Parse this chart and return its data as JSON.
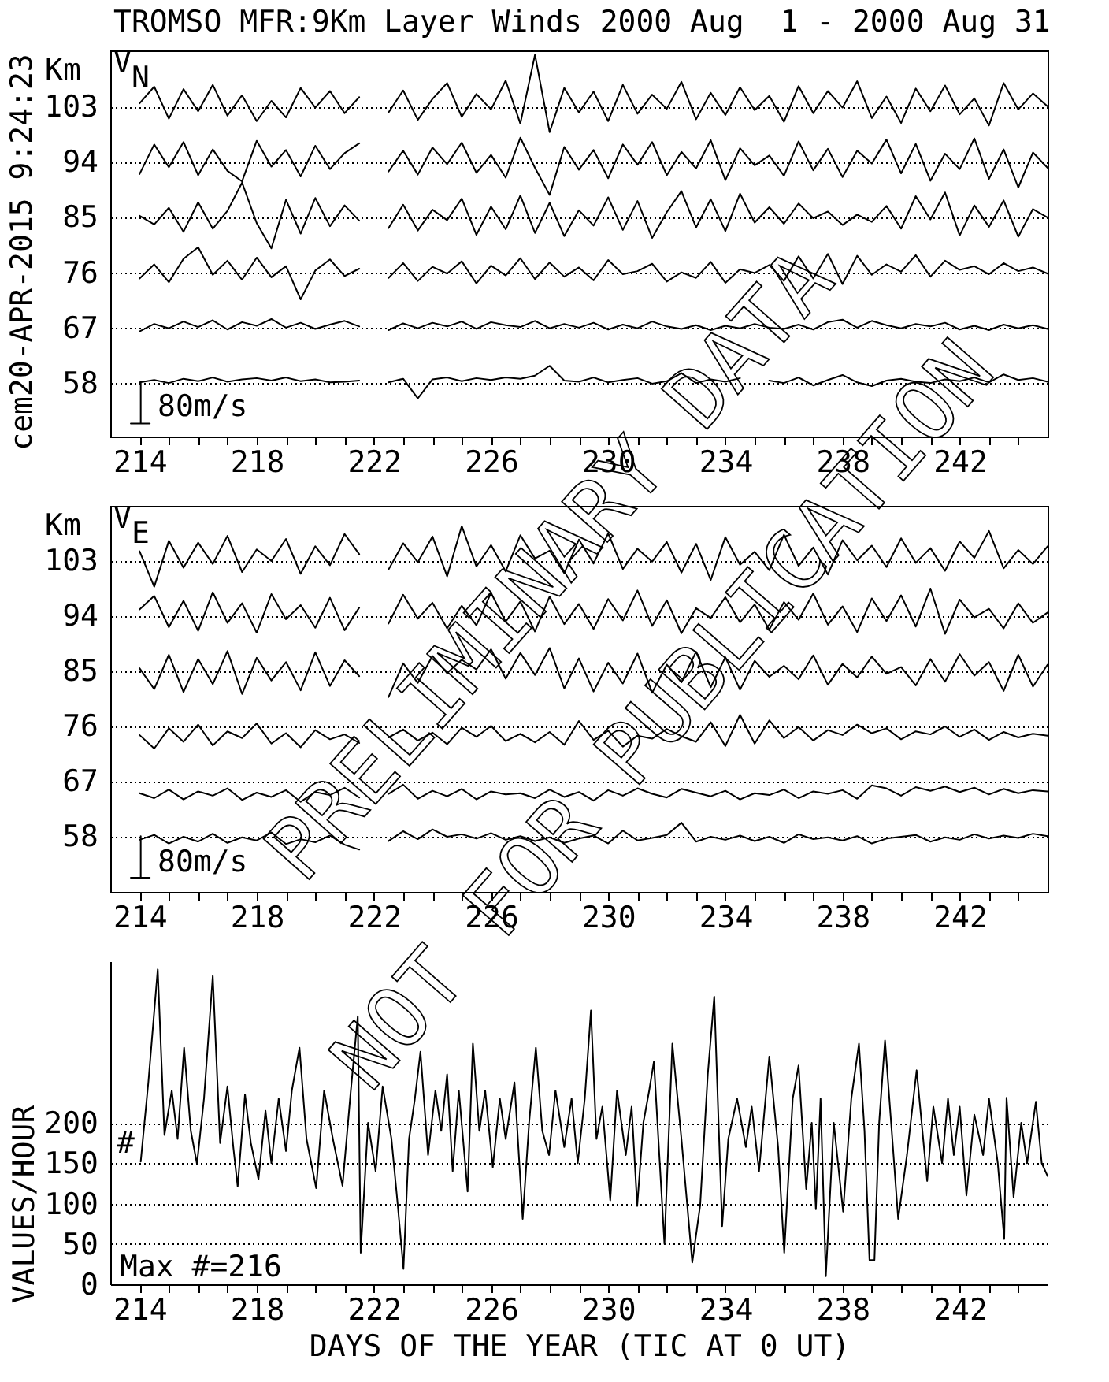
{
  "chart_data": [
    {
      "type": "line",
      "title": "TROMSO MFR:9Km Layer Winds 2000 Aug  1 - 2000 Aug 31",
      "ylabel": "Km",
      "grid": "y",
      "annotations": [
        "cem20-APR-2015 9:24:23",
        "V$_{N}$",
        "80m/s"
      ],
      "xlim": [
        213,
        245
      ],
      "ylim": [
        49.3,
        112.1
      ],
      "xticks": [
        214,
        {
          "value": 215,
          "label": null
        },
        {
          "value": 216,
          "label": null
        },
        {
          "value": 217,
          "label": null
        },
        218,
        {
          "value": 219,
          "label": null
        },
        {
          "value": 220,
          "label": null
        },
        {
          "value": 221,
          "label": null
        },
        222,
        {
          "value": 223,
          "label": null
        },
        {
          "value": 224,
          "label": null
        },
        {
          "value": 225,
          "label": null
        },
        226,
        {
          "value": 227,
          "label": null
        },
        {
          "value": 228,
          "label": null
        },
        {
          "value": 229,
          "label": null
        },
        230,
        {
          "value": 231,
          "label": null
        },
        {
          "value": 232,
          "label": null
        },
        {
          "value": 233,
          "label": null
        },
        234,
        {
          "value": 235,
          "label": null
        },
        {
          "value": 236,
          "label": null
        },
        {
          "value": 237,
          "label": null
        },
        238,
        {
          "value": 239,
          "label": null
        },
        {
          "value": 240,
          "label": null
        },
        {
          "value": 241,
          "label": null
        },
        242,
        {
          "value": 243,
          "label": null
        },
        {
          "value": 244,
          "label": null
        }
      ],
      "yticks": [
        58,
        67,
        76,
        85,
        94,
        103
      ],
      "x": [
        214,
        214.5,
        215,
        215.5,
        216,
        216.5,
        217,
        217.5,
        218,
        218.5,
        219,
        219.5,
        220,
        220.5,
        221,
        221.5,
        222,
        222.5,
        223,
        223.5,
        224,
        224.5,
        225,
        225.5,
        226,
        226.5,
        227,
        227.5,
        228,
        228.5,
        229,
        229.5,
        230,
        230.5,
        231,
        231.5,
        232,
        232.5,
        233,
        233.5,
        234,
        234.5,
        235,
        235.5,
        236,
        236.5,
        237,
        237.5,
        238,
        238.5,
        239,
        239.5,
        240,
        240.5,
        241,
        241.5,
        242,
        242.5,
        243,
        243.5,
        244,
        244.5,
        245
      ],
      "series": [
        {
          "color": "#000000",
          "values": [
            103.5,
            106.2,
            101.0,
            105.8,
            102.2,
            106.5,
            101.5,
            104.8,
            100.6,
            103.9,
            101.2,
            106.0,
            102.8,
            105.5,
            101.9,
            104.5,
            null,
            102.0,
            105.6,
            100.8,
            104.2,
            106.8,
            101.3,
            105.0,
            102.5,
            107.2,
            100.2,
            111.4,
            98.8,
            106.0,
            102.0,
            105.4,
            100.6,
            106.5,
            101.8,
            104.9,
            102.6,
            107.0,
            100.9,
            105.2,
            101.6,
            106.1,
            102.4,
            104.7,
            100.5,
            106.3,
            101.9,
            105.5,
            102.8,
            107.1,
            101.1,
            104.6,
            100.3,
            105.9,
            102.2,
            106.4,
            101.7,
            104.3,
            99.9,
            106.8,
            102.5,
            105.1,
            103.0
          ]
        },
        {
          "color": "#000000",
          "values": [
            92.0,
            96.8,
            93.1,
            97.2,
            91.8,
            96.0,
            92.5,
            90.8,
            97.4,
            93.2,
            95.9,
            91.6,
            96.6,
            92.8,
            95.4,
            97.0,
            null,
            92.4,
            95.8,
            91.9,
            96.3,
            93.6,
            97.1,
            92.2,
            95.1,
            91.4,
            97.9,
            93.0,
            88.6,
            96.4,
            92.7,
            95.9,
            91.3,
            96.8,
            93.5,
            97.2,
            91.8,
            95.6,
            92.9,
            97.5,
            91.0,
            96.2,
            93.4,
            95.0,
            91.7,
            97.3,
            92.6,
            96.1,
            91.5,
            95.8,
            93.7,
            97.6,
            92.1,
            96.9,
            90.9,
            95.3,
            92.8,
            97.8,
            91.2,
            96.0,
            89.8,
            95.5,
            93.0
          ]
        },
        {
          "color": "#000000",
          "values": [
            85.2,
            83.8,
            86.5,
            82.6,
            87.4,
            83.1,
            86.0,
            90.6,
            84.0,
            79.9,
            87.8,
            82.3,
            88.1,
            83.5,
            86.9,
            84.4,
            null,
            83.2,
            87.0,
            82.8,
            86.2,
            84.5,
            88.0,
            82.1,
            86.7,
            83.0,
            88.5,
            82.4,
            87.3,
            81.9,
            86.1,
            83.6,
            88.2,
            82.9,
            87.6,
            81.6,
            85.8,
            89.2,
            83.3,
            87.9,
            82.7,
            88.8,
            84.1,
            86.6,
            83.9,
            87.2,
            84.8,
            85.9,
            83.7,
            85.4,
            84.2,
            86.8,
            83.1,
            88.4,
            84.6,
            89.0,
            82.0,
            86.9,
            83.4,
            87.7,
            81.8,
            86.3,
            84.9
          ]
        },
        {
          "color": "#000000",
          "values": [
            75.0,
            77.3,
            74.4,
            78.2,
            80.1,
            75.6,
            77.9,
            74.8,
            78.4,
            75.2,
            77.0,
            71.6,
            76.3,
            78.1,
            75.4,
            76.6,
            null,
            75.1,
            77.5,
            74.6,
            76.9,
            75.8,
            77.8,
            74.2,
            77.1,
            75.5,
            78.3,
            74.9,
            77.6,
            75.3,
            76.8,
            74.7,
            78.0,
            75.7,
            76.2,
            77.4,
            74.5,
            76.0,
            75.1,
            77.7,
            74.3,
            76.5,
            75.9,
            77.2,
            74.6,
            78.6,
            75.0,
            79.0,
            74.1,
            78.7,
            75.6,
            77.3,
            76.1,
            78.8,
            75.3,
            77.9,
            76.4,
            77.0,
            75.7,
            77.5,
            76.2,
            76.8,
            75.8
          ]
        },
        {
          "color": "#000000",
          "values": [
            66.4,
            67.6,
            66.9,
            68.0,
            67.1,
            68.2,
            66.7,
            67.9,
            67.3,
            68.4,
            67.0,
            67.8,
            66.8,
            67.5,
            68.1,
            67.2,
            null,
            66.6,
            67.7,
            66.9,
            67.8,
            67.2,
            68.0,
            66.8,
            67.9,
            67.4,
            67.1,
            68.1,
            66.9,
            67.6,
            67.0,
            67.8,
            66.7,
            67.5,
            66.9,
            68.0,
            67.2,
            66.8,
            67.4,
            66.6,
            67.3,
            66.9,
            67.6,
            67.0,
            66.8,
            67.5,
            66.7,
            67.9,
            68.3,
            67.0,
            68.1,
            67.4,
            66.9,
            67.6,
            67.2,
            67.8,
            66.7,
            67.3,
            66.6,
            67.5,
            66.9,
            67.4,
            66.8
          ]
        },
        {
          "color": "#000000",
          "values": [
            58.1,
            58.5,
            58.0,
            58.7,
            58.3,
            58.9,
            58.2,
            58.6,
            58.8,
            58.4,
            58.9,
            58.3,
            58.6,
            58.1,
            58.2,
            58.4,
            null,
            58.1,
            58.7,
            55.5,
            58.6,
            58.9,
            58.3,
            58.8,
            58.5,
            58.9,
            58.7,
            59.2,
            60.8,
            58.4,
            58.2,
            58.9,
            58.1,
            58.5,
            58.8,
            57.9,
            58.3,
            59.6,
            58.0,
            58.6,
            58.2,
            58.8,
            null,
            58.4,
            58.0,
            58.9,
            57.6,
            58.5,
            59.3,
            58.1,
            57.5,
            58.4,
            58.7,
            58.2,
            58.0,
            58.6,
            58.3,
            58.9,
            58.1,
            59.4,
            58.5,
            58.8,
            58.2
          ]
        },
        {
          "color": "#000000",
          "x": [
            214.04,
            214.04,
            213.7,
            214.35
          ],
          "values": [
            58,
            51.4,
            51.4,
            51.4
          ]
        }
      ]
    },
    {
      "type": "line",
      "ylabel": "Km",
      "grid": "y",
      "annotations": [
        "V$_{E}$",
        "PRELIMINARY DATA",
        "NOT FOR PUBLICATION",
        "80m/s"
      ],
      "xlim": [
        213,
        245
      ],
      "ylim": [
        48.9,
        111.9
      ],
      "xticks": [
        214,
        {
          "value": 215,
          "label": null
        },
        {
          "value": 216,
          "label": null
        },
        {
          "value": 217,
          "label": null
        },
        218,
        {
          "value": 219,
          "label": null
        },
        {
          "value": 220,
          "label": null
        },
        {
          "value": 221,
          "label": null
        },
        222,
        {
          "value": 223,
          "label": null
        },
        {
          "value": 224,
          "label": null
        },
        {
          "value": 225,
          "label": null
        },
        226,
        {
          "value": 227,
          "label": null
        },
        {
          "value": 228,
          "label": null
        },
        {
          "value": 229,
          "label": null
        },
        230,
        {
          "value": 231,
          "label": null
        },
        {
          "value": 232,
          "label": null
        },
        {
          "value": 233,
          "label": null
        },
        234,
        {
          "value": 235,
          "label": null
        },
        {
          "value": 236,
          "label": null
        },
        {
          "value": 237,
          "label": null
        },
        238,
        {
          "value": 239,
          "label": null
        },
        {
          "value": 240,
          "label": null
        },
        {
          "value": 241,
          "label": null
        },
        242,
        {
          "value": 243,
          "label": null
        },
        {
          "value": 244,
          "label": null
        }
      ],
      "yticks": [
        58,
        67,
        76,
        85,
        94,
        103
      ],
      "x": [
        214,
        214.5,
        215,
        215.5,
        216,
        216.5,
        217,
        217.5,
        218,
        218.5,
        219,
        219.5,
        220,
        220.5,
        221,
        221.5,
        222,
        222.5,
        223,
        223.5,
        224,
        224.5,
        225,
        225.5,
        226,
        226.5,
        227,
        227.5,
        228,
        228.5,
        229,
        229.5,
        230,
        230.5,
        231,
        231.5,
        232,
        232.5,
        233,
        233.5,
        234,
        234.5,
        235,
        235.5,
        236,
        236.5,
        237,
        237.5,
        238,
        238.5,
        239,
        239.5,
        240,
        240.5,
        241,
        241.5,
        242,
        242.5,
        243,
        243.5,
        244,
        244.5,
        245
      ],
      "series": [
        {
          "color": "#000000",
          "values": [
            104.5,
            98.7,
            106.2,
            101.8,
            105.9,
            102.4,
            107.0,
            101.1,
            104.8,
            102.9,
            106.5,
            100.8,
            105.3,
            102.2,
            107.3,
            104.0,
            null,
            101.5,
            105.8,
            102.7,
            106.9,
            100.4,
            108.6,
            102.0,
            105.5,
            101.2,
            107.1,
            103.3,
            104.6,
            100.9,
            106.4,
            102.5,
            107.4,
            101.6,
            104.9,
            102.8,
            106.0,
            101.0,
            105.7,
            99.8,
            106.8,
            102.3,
            104.4,
            101.4,
            107.2,
            102.1,
            105.1,
            100.7,
            106.3,
            103.0,
            105.4,
            101.9,
            106.6,
            102.6,
            105.0,
            101.3,
            106.1,
            103.4,
            107.8,
            101.7,
            104.7,
            102.4,
            105.3
          ]
        },
        {
          "color": "#000000",
          "values": [
            95.0,
            97.2,
            92.1,
            96.4,
            91.5,
            97.8,
            92.8,
            96.0,
            91.2,
            97.5,
            93.4,
            95.7,
            92.0,
            96.9,
            91.6,
            95.3,
            null,
            92.7,
            97.4,
            93.5,
            96.1,
            91.9,
            95.6,
            92.4,
            97.7,
            93.0,
            96.3,
            91.4,
            97.1,
            92.6,
            95.9,
            91.8,
            96.7,
            93.2,
            98.1,
            92.3,
            96.5,
            91.1,
            95.2,
            93.6,
            97.0,
            92.9,
            95.8,
            91.7,
            96.2,
            93.3,
            97.6,
            92.5,
            95.5,
            91.3,
            96.8,
            93.1,
            97.3,
            92.2,
            98.4,
            91.0,
            96.6,
            93.7,
            95.1,
            91.9,
            96.0,
            92.8,
            94.5
          ]
        },
        {
          "color": "#000000",
          "values": [
            85.4,
            82.0,
            87.6,
            81.5,
            86.9,
            82.8,
            88.2,
            81.2,
            87.1,
            83.4,
            86.4,
            81.8,
            88.0,
            82.5,
            86.7,
            84.1,
            null,
            80.7,
            86.2,
            83.0,
            87.4,
            84.6,
            86.8,
            85.2,
            88.5,
            83.7,
            87.9,
            84.3,
            88.7,
            82.1,
            87.0,
            81.6,
            86.3,
            82.9,
            87.8,
            81.4,
            86.0,
            83.1,
            88.1,
            82.3,
            87.2,
            81.9,
            86.6,
            84.0,
            85.8,
            83.6,
            87.5,
            82.7,
            86.1,
            83.9,
            87.3,
            84.5,
            85.6,
            82.6,
            86.9,
            83.2,
            87.7,
            84.2,
            86.4,
            81.7,
            87.6,
            82.4,
            86.0
          ]
        },
        {
          "color": "#000000",
          "values": [
            74.5,
            72.3,
            75.6,
            73.4,
            76.2,
            72.8,
            75.1,
            74.0,
            76.4,
            73.1,
            74.8,
            72.5,
            75.3,
            73.8,
            74.6,
            73.2,
            null,
            74.1,
            75.4,
            73.6,
            74.9,
            73.0,
            75.7,
            74.2,
            76.0,
            73.5,
            74.7,
            73.3,
            75.0,
            72.9,
            76.8,
            73.7,
            75.2,
            72.6,
            74.4,
            73.9,
            75.5,
            74.3,
            73.4,
            76.6,
            72.7,
            77.8,
            73.1,
            76.9,
            74.0,
            75.8,
            73.6,
            75.3,
            74.5,
            76.2,
            74.8,
            75.6,
            73.8,
            75.1,
            74.6,
            75.9,
            74.2,
            75.4,
            73.7,
            75.0,
            74.1,
            74.7,
            74.4
          ]
        },
        {
          "color": "#000000",
          "values": [
            65.0,
            64.2,
            65.6,
            64.0,
            65.3,
            64.6,
            65.8,
            63.9,
            65.1,
            64.4,
            65.5,
            63.6,
            65.2,
            64.7,
            65.9,
            64.3,
            null,
            64.9,
            66.4,
            64.1,
            65.4,
            64.5,
            65.7,
            64.0,
            65.3,
            64.8,
            65.0,
            64.2,
            65.6,
            64.4,
            65.2,
            63.8,
            65.5,
            64.6,
            65.8,
            64.9,
            64.3,
            65.7,
            65.1,
            64.5,
            65.4,
            64.0,
            65.0,
            64.7,
            65.6,
            64.2,
            65.3,
            64.9,
            65.5,
            64.1,
            66.3,
            65.8,
            64.6,
            66.0,
            65.4,
            66.1,
            65.2,
            65.9,
            64.8,
            65.7,
            65.0,
            65.5,
            65.3
          ]
        },
        {
          "color": "#000000",
          "values": [
            57.4,
            58.2,
            56.8,
            57.9,
            57.1,
            58.4,
            56.9,
            57.8,
            57.3,
            58.6,
            56.7,
            57.5,
            57.0,
            58.1,
            56.6,
            55.8,
            null,
            57.2,
            58.8,
            57.5,
            59.1,
            57.9,
            58.3,
            57.6,
            58.5,
            57.4,
            58.0,
            57.2,
            57.8,
            56.9,
            57.6,
            58.1,
            56.8,
            58.9,
            57.3,
            57.7,
            58.2,
            60.2,
            57.1,
            57.9,
            57.4,
            58.1,
            57.2,
            57.9,
            56.9,
            58.3,
            57.5,
            57.8,
            57.3,
            58.0,
            56.8,
            57.6,
            57.9,
            58.2,
            57.1,
            57.8,
            57.4,
            58.3,
            57.6,
            58.1,
            57.7,
            58.4,
            58.0
          ]
        },
        {
          "color": "#000000",
          "x": [
            214.04,
            214.04,
            213.7,
            214.35
          ],
          "values": [
            58,
            51.2,
            51.2,
            51.2
          ]
        }
      ]
    },
    {
      "type": "line",
      "xlabel": "DAYS OF THE YEAR (TIC AT 0 UT)",
      "ylabel": "VALUES/HOUR",
      "grid": "y",
      "annotations": [
        "#",
        "Max #=216"
      ],
      "xlim": [
        213,
        245
      ],
      "ylim": [
        0,
        400
      ],
      "xticks": [
        214,
        {
          "value": 215,
          "label": null
        },
        {
          "value": 216,
          "label": null
        },
        {
          "value": 217,
          "label": null
        },
        218,
        {
          "value": 219,
          "label": null
        },
        {
          "value": 220,
          "label": null
        },
        {
          "value": 221,
          "label": null
        },
        222,
        {
          "value": 223,
          "label": null
        },
        {
          "value": 224,
          "label": null
        },
        {
          "value": 225,
          "label": null
        },
        226,
        {
          "value": 227,
          "label": null
        },
        {
          "value": 228,
          "label": null
        },
        {
          "value": 229,
          "label": null
        },
        230,
        {
          "value": 231,
          "label": null
        },
        {
          "value": 232,
          "label": null
        },
        {
          "value": 233,
          "label": null
        },
        234,
        {
          "value": 235,
          "label": null
        },
        {
          "value": 236,
          "label": null
        },
        {
          "value": 237,
          "label": null
        },
        238,
        {
          "value": 239,
          "label": null
        },
        {
          "value": 240,
          "label": null
        },
        {
          "value": 241,
          "label": null
        },
        242,
        {
          "value": 243,
          "label": null
        },
        {
          "value": 244,
          "label": null
        }
      ],
      "yticks": [
        0,
        50,
        100,
        150,
        200
      ],
      "series": [
        {
          "color": "#000000",
          "x": [
            214.04,
            214.3,
            214.62,
            214.85,
            215.1,
            215.3,
            215.52,
            215.75,
            215.96,
            216.2,
            216.5,
            216.75,
            217.0,
            217.2,
            217.35,
            217.6,
            217.8,
            218.06,
            218.3,
            218.5,
            218.75,
            219.0,
            219.2,
            219.46,
            219.7,
            220.03,
            220.3,
            220.6,
            220.93,
            221.2,
            221.45,
            221.55,
            221.8,
            222.06,
            222.3,
            222.6,
            222.81,
            223.01,
            223.2,
            223.4,
            223.59,
            223.85,
            224.1,
            224.3,
            224.5,
            224.69,
            224.9,
            225.2,
            225.38,
            225.6,
            225.8,
            226.06,
            226.3,
            226.5,
            226.8,
            227.08,
            227.3,
            227.53,
            227.75,
            227.98,
            228.2,
            228.5,
            228.75,
            228.96,
            229.2,
            229.41,
            229.6,
            229.8,
            230.07,
            230.3,
            230.6,
            230.8,
            230.99,
            231.2,
            231.4,
            231.56,
            231.92,
            232.19,
            232.5,
            232.87,
            233.14,
            233.4,
            233.62,
            233.89,
            234.1,
            234.4,
            234.7,
            234.9,
            235.15,
            235.5,
            235.8,
            236.01,
            236.3,
            236.5,
            236.76,
            236.95,
            237.09,
            237.25,
            237.43,
            237.7,
            238.02,
            238.3,
            238.56,
            238.75,
            238.92,
            239.09,
            239.25,
            239.45,
            239.7,
            239.9,
            240.2,
            240.53,
            240.89,
            241.1,
            241.4,
            241.6,
            241.8,
            242.0,
            242.23,
            242.5,
            242.8,
            243.0,
            243.3,
            243.52,
            243.6,
            243.84,
            244.1,
            244.3,
            244.6,
            244.8,
            245.0
          ],
          "values": [
            152,
            250,
            390,
            185,
            240,
            180,
            293,
            190,
            149,
            230,
            382,
            175,
            245,
            170,
            121,
            235,
            175,
            130,
            215,
            150,
            230,
            165,
            240,
            293,
            180,
            119,
            240,
            180,
            122,
            235,
            332,
            39,
            200,
            140,
            245,
            180,
            100,
            19,
            180,
            230,
            288,
            160,
            240,
            190,
            260,
            140,
            240,
            115,
            298,
            190,
            240,
            145,
            230,
            180,
            250,
            81,
            200,
            293,
            190,
            160,
            240,
            170,
            230,
            150,
            230,
            339,
            180,
            220,
            104,
            240,
            160,
            220,
            97,
            200,
            240,
            276,
            50,
            298,
            180,
            27,
            98,
            260,
            356,
            72,
            180,
            230,
            170,
            220,
            140,
            282,
            170,
            39,
            230,
            271,
            118,
            200,
            93,
            230,
            10,
            200,
            90,
            230,
            298,
            190,
            30,
            30,
            200,
            302,
            180,
            81,
            160,
            265,
            128,
            220,
            150,
            230,
            160,
            220,
            110,
            210,
            160,
            230,
            150,
            56,
            231,
            108,
            200,
            150,
            226,
            150,
            134
          ]
        }
      ]
    }
  ]
}
